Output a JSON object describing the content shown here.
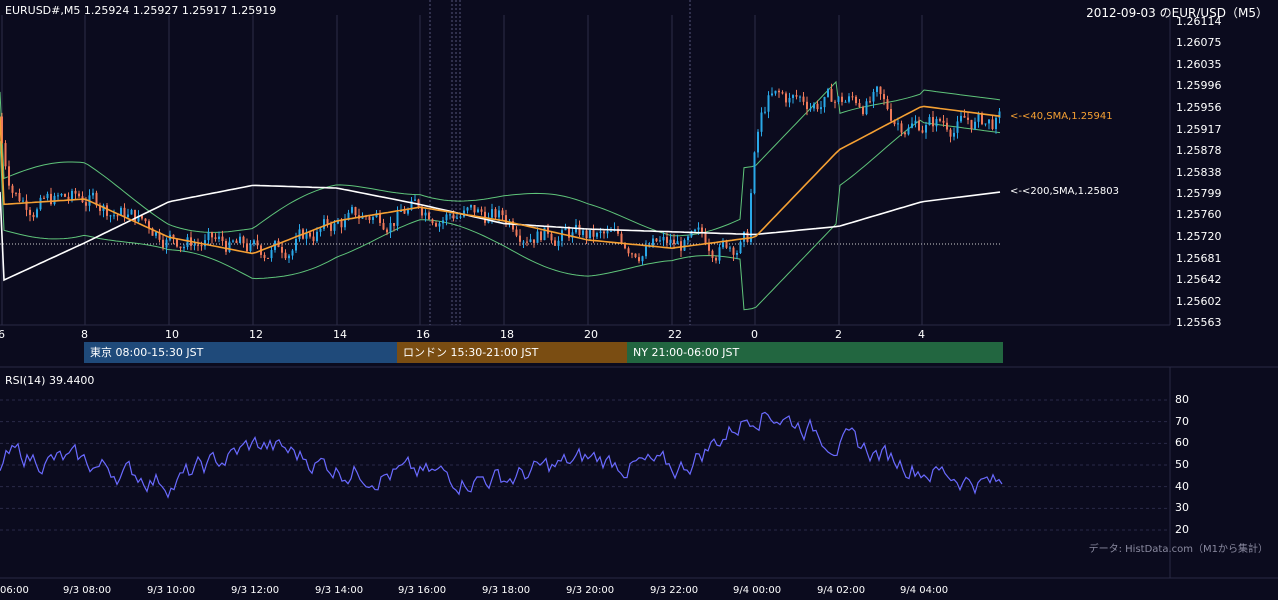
{
  "header": {
    "symbol_line": "EURUSD#,M5 1.25924 1.25927 1.25917 1.25919",
    "title": "2012-09-03 のEUR/USD（M5）"
  },
  "colors": {
    "background": "#0b0b1e",
    "bull_candle": "#2aa8e8",
    "bear_candle": "#f07a5a",
    "sma40": "#f5a033",
    "sma200": "#ffffff",
    "bollinger": "#5fc47a",
    "rsi_line": "#6a6aff"
  },
  "main_chart": {
    "price_ticks": [
      "1.26114",
      "1.26075",
      "1.26035",
      "1.25996",
      "1.25956",
      "1.25917",
      "1.25878",
      "1.25838",
      "1.25799",
      "1.25760",
      "1.25720",
      "1.25681",
      "1.25642",
      "1.25602",
      "1.25563"
    ],
    "hour_ticks": [
      "6",
      "8",
      "10",
      "12",
      "14",
      "16",
      "18",
      "20",
      "22",
      "0",
      "2",
      "4"
    ],
    "sma40_label": "<-<40,SMA,1.25941",
    "sma200_label": "<-<200,SMA,1.25803"
  },
  "sessions": [
    {
      "label": "東京 08:00-15:30 JST",
      "color": "#1f4a7a"
    },
    {
      "label": "ロンドン 15:30-21:00 JST",
      "color": "#7a4d12"
    },
    {
      "label": "NY 21:00-06:00 JST",
      "color": "#226640"
    }
  ],
  "rsi_panel": {
    "label": "RSI(14) 39.4400",
    "ticks": [
      "80",
      "70",
      "60",
      "50",
      "40",
      "30",
      "20"
    ],
    "source": "データ: HistData.com（M1から集計）"
  },
  "time_axis": [
    "06:00",
    "9/3 08:00",
    "9/3 10:00",
    "9/3 12:00",
    "9/3 14:00",
    "9/3 16:00",
    "9/3 18:00",
    "9/3 20:00",
    "9/3 22:00",
    "9/4 00:00",
    "9/4 02:00",
    "9/4 04:00"
  ],
  "chart_data": [
    {
      "type": "line",
      "title": "2012-09-03 のEUR/USD（M5）",
      "ylim": [
        1.25563,
        1.26114
      ],
      "x": [
        "06:00",
        "08:00",
        "10:00",
        "12:00",
        "14:00",
        "16:00",
        "18:00",
        "20:00",
        "22:00",
        "00:00",
        "02:00",
        "04:00",
        "05:35"
      ],
      "series": [
        {
          "name": "SMA 40",
          "values": [
            1.2578,
            1.2579,
            1.2572,
            1.2569,
            1.2575,
            1.25775,
            1.2575,
            1.25715,
            1.257,
            1.2572,
            1.2588,
            1.2596,
            1.25941
          ]
        },
        {
          "name": "SMA 200",
          "values": [
            1.2564,
            1.2571,
            1.25785,
            1.25815,
            1.2581,
            1.2578,
            1.25745,
            1.25735,
            1.2573,
            1.25725,
            1.2574,
            1.25785,
            1.25803
          ]
        }
      ]
    },
    {
      "type": "line",
      "title": "RSI(14) 39.4400",
      "ylim": [
        20,
        80
      ],
      "x": [
        "06:00",
        "08:00",
        "10:00",
        "12:00",
        "14:00",
        "16:00",
        "18:00",
        "20:00",
        "22:00",
        "00:00",
        "02:00",
        "04:00",
        "05:35"
      ],
      "series": [
        {
          "name": "RSI(14)",
          "values": [
            55,
            50,
            42,
            60,
            48,
            45,
            44,
            53,
            47,
            77,
            60,
            48,
            39.44
          ]
        }
      ]
    }
  ]
}
